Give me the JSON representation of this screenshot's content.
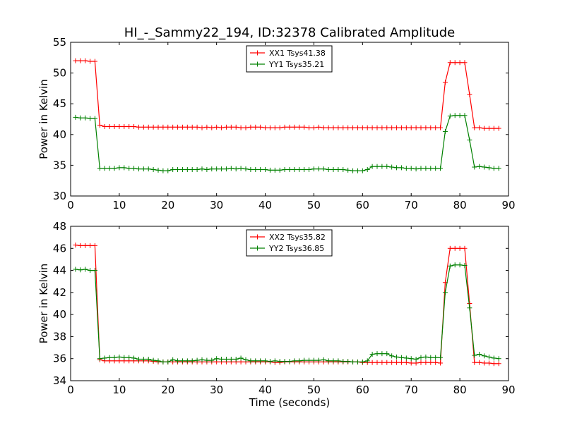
{
  "chart_data": {
    "title": "HI_-_Sammy22_194, ID:32378 Calibrated Amplitude",
    "xlabel": "Time (seconds)",
    "panels": [
      {
        "type": "line",
        "ylabel": "Power in Kelvin",
        "xlim": [
          0,
          90
        ],
        "ylim": [
          30,
          55
        ],
        "xticks": [
          "0",
          "10",
          "20",
          "30",
          "40",
          "50",
          "60",
          "70",
          "80",
          "90"
        ],
        "yticks": [
          "30",
          "35",
          "40",
          "45",
          "50",
          "55"
        ],
        "legend_position": "top-center",
        "series": [
          {
            "name": "XX1 Tsys41.38",
            "color": "#ff0000",
            "x": [
              1,
              2,
              3,
              4,
              5,
              6,
              7,
              8,
              9,
              10,
              11,
              12,
              13,
              14,
              15,
              16,
              17,
              18,
              19,
              20,
              21,
              22,
              23,
              24,
              25,
              26,
              27,
              28,
              29,
              30,
              31,
              32,
              33,
              34,
              35,
              36,
              37,
              38,
              39,
              40,
              41,
              42,
              43,
              44,
              45,
              46,
              47,
              48,
              49,
              50,
              51,
              52,
              53,
              54,
              55,
              56,
              57,
              58,
              59,
              60,
              61,
              62,
              63,
              64,
              65,
              66,
              67,
              68,
              69,
              70,
              71,
              72,
              73,
              74,
              75,
              76,
              77,
              78,
              79,
              80,
              81,
              82,
              83,
              84,
              85,
              86,
              87,
              88
            ],
            "y": [
              52,
              52,
              52,
              51.9,
              51.9,
              41.5,
              41.3,
              41.3,
              41.3,
              41.3,
              41.3,
              41.3,
              41.3,
              41.2,
              41.2,
              41.2,
              41.2,
              41.2,
              41.2,
              41.2,
              41.2,
              41.2,
              41.2,
              41.2,
              41.2,
              41.2,
              41.1,
              41.2,
              41.1,
              41.2,
              41.1,
              41.2,
              41.2,
              41.2,
              41.1,
              41.1,
              41.2,
              41.2,
              41.2,
              41.1,
              41.1,
              41.1,
              41.1,
              41.2,
              41.2,
              41.2,
              41.2,
              41.2,
              41.1,
              41.1,
              41.2,
              41.1,
              41.1,
              41.1,
              41.1,
              41.1,
              41.1,
              41.1,
              41.1,
              41.1,
              41.1,
              41.1,
              41.1,
              41.1,
              41.1,
              41.1,
              41.1,
              41.1,
              41.1,
              41.1,
              41.1,
              41.1,
              41.1,
              41.1,
              41.1,
              41.1,
              48.5,
              51.7,
              51.7,
              51.7,
              51.7,
              46.5,
              41.1,
              41.1,
              41,
              41,
              41,
              41
            ]
          },
          {
            "name": "YY1 Tsys35.21",
            "color": "#008000",
            "x": [
              1,
              2,
              3,
              4,
              5,
              6,
              7,
              8,
              9,
              10,
              11,
              12,
              13,
              14,
              15,
              16,
              17,
              18,
              19,
              20,
              21,
              22,
              23,
              24,
              25,
              26,
              27,
              28,
              29,
              30,
              31,
              32,
              33,
              34,
              35,
              36,
              37,
              38,
              39,
              40,
              41,
              42,
              43,
              44,
              45,
              46,
              47,
              48,
              49,
              50,
              51,
              52,
              53,
              54,
              55,
              56,
              57,
              58,
              59,
              60,
              61,
              62,
              63,
              64,
              65,
              66,
              67,
              68,
              69,
              70,
              71,
              72,
              73,
              74,
              75,
              76,
              77,
              78,
              79,
              80,
              81,
              82,
              83,
              84,
              85,
              86,
              87,
              88
            ],
            "y": [
              42.8,
              42.7,
              42.7,
              42.6,
              42.6,
              34.5,
              34.5,
              34.5,
              34.5,
              34.6,
              34.6,
              34.5,
              34.5,
              34.4,
              34.4,
              34.4,
              34.3,
              34.2,
              34.1,
              34.1,
              34.3,
              34.3,
              34.3,
              34.3,
              34.3,
              34.3,
              34.4,
              34.3,
              34.4,
              34.4,
              34.4,
              34.4,
              34.5,
              34.4,
              34.5,
              34.4,
              34.3,
              34.3,
              34.3,
              34.3,
              34.2,
              34.2,
              34.2,
              34.3,
              34.3,
              34.3,
              34.3,
              34.3,
              34.3,
              34.4,
              34.4,
              34.4,
              34.3,
              34.3,
              34.3,
              34.3,
              34.2,
              34.1,
              34.1,
              34.1,
              34.3,
              34.8,
              34.8,
              34.8,
              34.8,
              34.7,
              34.6,
              34.6,
              34.5,
              34.5,
              34.4,
              34.5,
              34.5,
              34.5,
              34.5,
              34.5,
              40.5,
              43,
              43.1,
              43.1,
              43.1,
              39.1,
              34.7,
              34.8,
              34.7,
              34.6,
              34.5,
              34.5
            ]
          }
        ]
      },
      {
        "type": "line",
        "ylabel": "Power in Kelvin",
        "xlim": [
          0,
          90
        ],
        "ylim": [
          34,
          48
        ],
        "xticks": [
          "0",
          "10",
          "20",
          "30",
          "40",
          "50",
          "60",
          "70",
          "80",
          "90"
        ],
        "yticks": [
          "34",
          "36",
          "38",
          "40",
          "42",
          "44",
          "46",
          "48"
        ],
        "legend_position": "top-center",
        "series": [
          {
            "name": "XX2 Tsys35.82",
            "color": "#ff0000",
            "x": [
              1,
              2,
              3,
              4,
              5,
              6,
              7,
              8,
              9,
              10,
              11,
              12,
              13,
              14,
              15,
              16,
              17,
              18,
              19,
              20,
              21,
              22,
              23,
              24,
              25,
              26,
              27,
              28,
              29,
              30,
              31,
              32,
              33,
              34,
              35,
              36,
              37,
              38,
              39,
              40,
              41,
              42,
              43,
              44,
              45,
              46,
              47,
              48,
              49,
              50,
              51,
              52,
              53,
              54,
              55,
              56,
              57,
              58,
              59,
              60,
              61,
              62,
              63,
              64,
              65,
              66,
              67,
              68,
              69,
              70,
              71,
              72,
              73,
              74,
              75,
              76,
              77,
              78,
              79,
              80,
              81,
              82,
              83,
              84,
              85,
              86,
              87,
              88
            ],
            "y": [
              46.3,
              46.25,
              46.25,
              46.25,
              46.25,
              35.9,
              35.8,
              35.8,
              35.8,
              35.8,
              35.8,
              35.8,
              35.8,
              35.8,
              35.8,
              35.8,
              35.75,
              35.7,
              35.7,
              35.7,
              35.7,
              35.7,
              35.7,
              35.7,
              35.7,
              35.7,
              35.7,
              35.7,
              35.7,
              35.7,
              35.7,
              35.7,
              35.7,
              35.7,
              35.7,
              35.7,
              35.7,
              35.7,
              35.7,
              35.7,
              35.7,
              35.65,
              35.65,
              35.7,
              35.7,
              35.7,
              35.7,
              35.7,
              35.7,
              35.7,
              35.7,
              35.7,
              35.7,
              35.7,
              35.7,
              35.7,
              35.7,
              35.7,
              35.7,
              35.65,
              35.65,
              35.65,
              35.65,
              35.65,
              35.65,
              35.65,
              35.65,
              35.65,
              35.65,
              35.6,
              35.6,
              35.65,
              35.65,
              35.65,
              35.65,
              35.6,
              42.9,
              46,
              46,
              46,
              46,
              41,
              35.65,
              35.65,
              35.6,
              35.6,
              35.55,
              35.55
            ]
          },
          {
            "name": "YY2 Tsys36.85",
            "color": "#008000",
            "x": [
              1,
              2,
              3,
              4,
              5,
              6,
              7,
              8,
              9,
              10,
              11,
              12,
              13,
              14,
              15,
              16,
              17,
              18,
              19,
              20,
              21,
              22,
              23,
              24,
              25,
              26,
              27,
              28,
              29,
              30,
              31,
              32,
              33,
              34,
              35,
              36,
              37,
              38,
              39,
              40,
              41,
              42,
              43,
              44,
              45,
              46,
              47,
              48,
              49,
              50,
              51,
              52,
              53,
              54,
              55,
              56,
              57,
              58,
              59,
              60,
              61,
              62,
              63,
              64,
              65,
              66,
              67,
              68,
              69,
              70,
              71,
              72,
              73,
              74,
              75,
              76,
              77,
              78,
              79,
              80,
              81,
              82,
              83,
              84,
              85,
              86,
              87,
              88
            ],
            "y": [
              44.1,
              44.05,
              44.1,
              44,
              44,
              36,
              36.05,
              36.1,
              36.1,
              36.15,
              36.1,
              36.1,
              36.05,
              35.95,
              35.95,
              35.95,
              35.85,
              35.8,
              35.7,
              35.7,
              35.9,
              35.8,
              35.8,
              35.8,
              35.8,
              35.85,
              35.9,
              35.85,
              35.85,
              36,
              35.95,
              35.95,
              35.95,
              35.95,
              36.05,
              35.9,
              35.8,
              35.8,
              35.8,
              35.8,
              35.75,
              35.8,
              35.75,
              35.75,
              35.75,
              35.8,
              35.8,
              35.85,
              35.85,
              35.85,
              35.85,
              35.9,
              35.8,
              35.8,
              35.8,
              35.75,
              35.75,
              35.7,
              35.7,
              35.7,
              35.8,
              36.4,
              36.45,
              36.45,
              36.45,
              36.25,
              36.15,
              36.1,
              36.05,
              36,
              35.95,
              36.1,
              36.15,
              36.1,
              36.1,
              36.1,
              42,
              44.4,
              44.5,
              44.5,
              44.45,
              40.6,
              36.3,
              36.4,
              36.25,
              36.15,
              36.05,
              36
            ]
          }
        ]
      }
    ]
  }
}
